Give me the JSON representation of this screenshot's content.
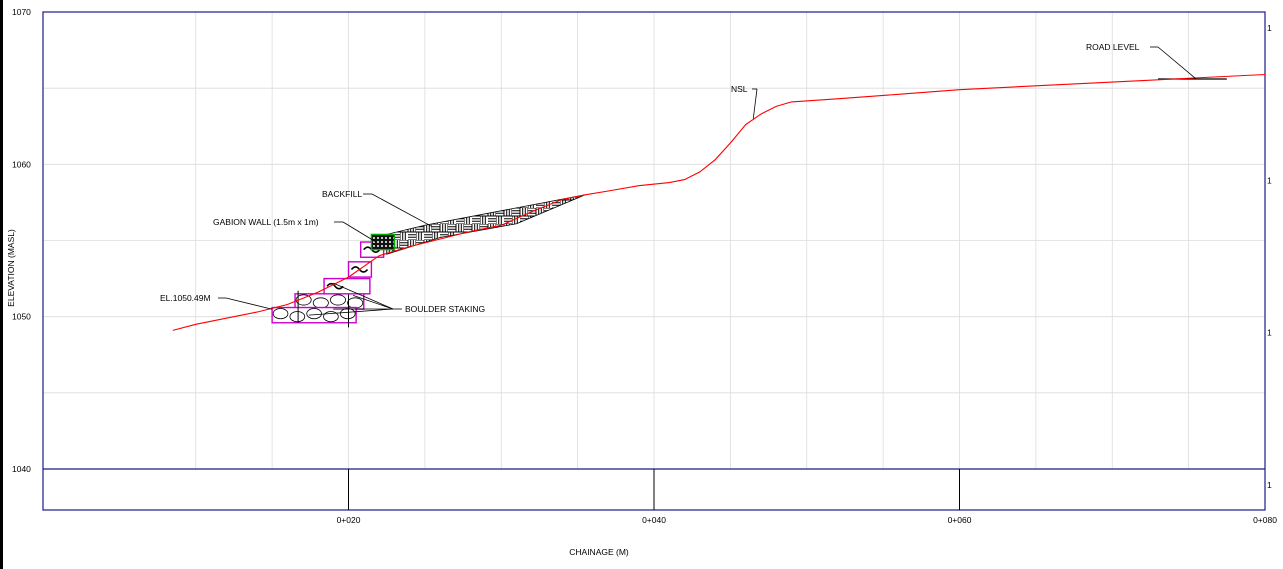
{
  "chart_data": {
    "type": "line",
    "title": "",
    "xlabel": "CHAINAGE (M)",
    "ylabel": "ELEVATION (MASL)",
    "xlim": [
      0,
      80
    ],
    "ylim": [
      1040,
      1070
    ],
    "x_ticks": [
      {
        "value": 20,
        "label": "0+020"
      },
      {
        "value": 40,
        "label": "0+040"
      },
      {
        "value": 60,
        "label": "0+060"
      },
      {
        "value": 80,
        "label": "0+080"
      }
    ],
    "y_ticks": [
      {
        "value": 1040,
        "label": "1040"
      },
      {
        "value": 1050,
        "label": "1050"
      },
      {
        "value": 1060,
        "label": "1060"
      },
      {
        "value": 1070,
        "label": "1070"
      }
    ],
    "right_tick_label": "1",
    "grid": true,
    "series": [
      {
        "name": "NSL",
        "color": "#ff0000",
        "x": [
          8.5,
          10,
          12,
          14,
          16,
          18,
          20,
          22,
          24,
          26,
          28,
          30,
          32,
          34,
          35.5,
          37,
          39,
          41,
          42,
          43,
          44,
          45,
          46,
          47,
          48,
          49,
          52,
          56,
          60,
          64,
          68,
          72,
          76,
          80
        ],
        "y": [
          1049.1,
          1049.5,
          1049.9,
          1050.3,
          1050.8,
          1051.6,
          1052.6,
          1054.0,
          1054.6,
          1055.1,
          1055.6,
          1056.0,
          1056.9,
          1057.7,
          1058.0,
          1058.25,
          1058.6,
          1058.8,
          1059.0,
          1059.5,
          1060.3,
          1061.4,
          1062.6,
          1063.3,
          1063.8,
          1064.1,
          1064.3,
          1064.6,
          1064.9,
          1065.1,
          1065.3,
          1065.5,
          1065.7,
          1065.9
        ]
      }
    ],
    "structures": {
      "backfill": {
        "points": [
          [
            22.5,
            1054.1
          ],
          [
            26,
            1055.2
          ],
          [
            31,
            1056.1
          ],
          [
            35.5,
            1058.0
          ],
          [
            25,
            1056.0
          ],
          [
            22.5,
            1055.4
          ]
        ]
      },
      "gabion_wall": {
        "x0": 21.5,
        "x1": 23.0,
        "y0": 1054.4,
        "y1": 1055.4
      },
      "gabion_boxes": [
        {
          "x0": 20.8,
          "x1": 22.3,
          "y0": 1053.9,
          "y1": 1054.9
        },
        {
          "x0": 20.0,
          "x1": 21.5,
          "y0": 1052.6,
          "y1": 1053.6
        },
        {
          "x0": 18.4,
          "x1": 21.4,
          "y0": 1051.5,
          "y1": 1052.5
        }
      ],
      "boulder_staking": [
        {
          "x0": 16.5,
          "x1": 21.0,
          "y0": 1050.5,
          "y1": 1051.5
        },
        {
          "x0": 15.0,
          "x1": 20.5,
          "y0": 1049.6,
          "y1": 1050.6
        }
      ],
      "road_level": {
        "x0": 73,
        "x1": 77.5,
        "y": 1065.6
      }
    },
    "annotations": [
      {
        "text": "ROAD LEVEL",
        "target": [
          75.5,
          1065.6
        ]
      },
      {
        "text": "NSL",
        "target": [
          46.5,
          1063.0
        ]
      },
      {
        "text": "BACKFILL",
        "target": [
          25.5,
          1055.9
        ]
      },
      {
        "text": "GABION WALL (1.5m x 1m)",
        "target": [
          21.8,
          1054.9
        ]
      },
      {
        "text": "EL.1050.49M",
        "target": [
          15.0,
          1050.49
        ]
      },
      {
        "text": "BOULDER STAKING",
        "target": [
          19.0,
          1050.5
        ]
      }
    ]
  }
}
